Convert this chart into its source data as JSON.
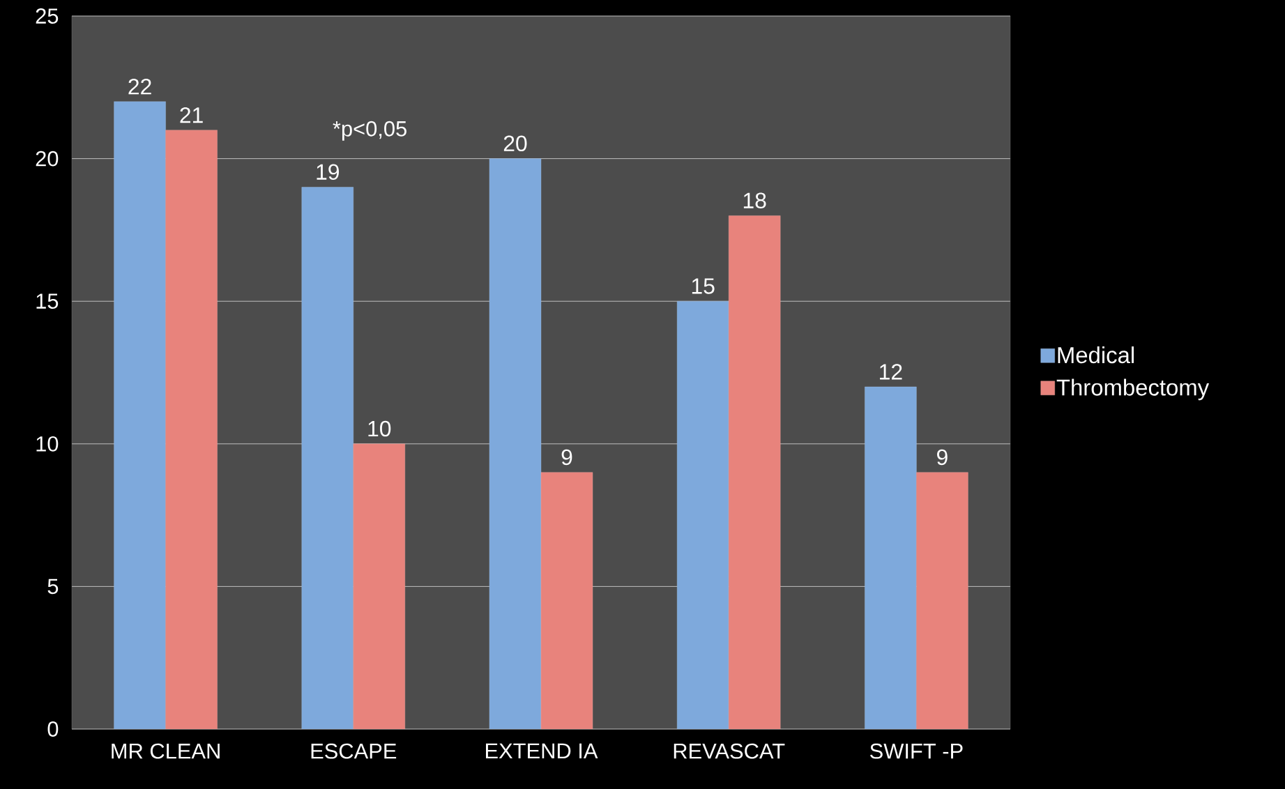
{
  "chart_data": {
    "type": "bar",
    "categories": [
      "MR CLEAN",
      "ESCAPE",
      "EXTEND IA",
      "REVASCAT",
      "SWIFT -P"
    ],
    "series": [
      {
        "name": "Medical",
        "color": "#7ea9dc",
        "values": [
          22,
          19,
          20,
          15,
          12
        ]
      },
      {
        "name": "Thrombectomy",
        "color": "#e8837c",
        "values": [
          21,
          10,
          9,
          18,
          9
        ]
      }
    ],
    "ylim": [
      0,
      25
    ],
    "yticks": [
      0,
      5,
      10,
      15,
      20,
      25
    ],
    "grid": "y",
    "legend": "right",
    "data_labels": true,
    "annotations": [
      "*p<0,05"
    ]
  }
}
